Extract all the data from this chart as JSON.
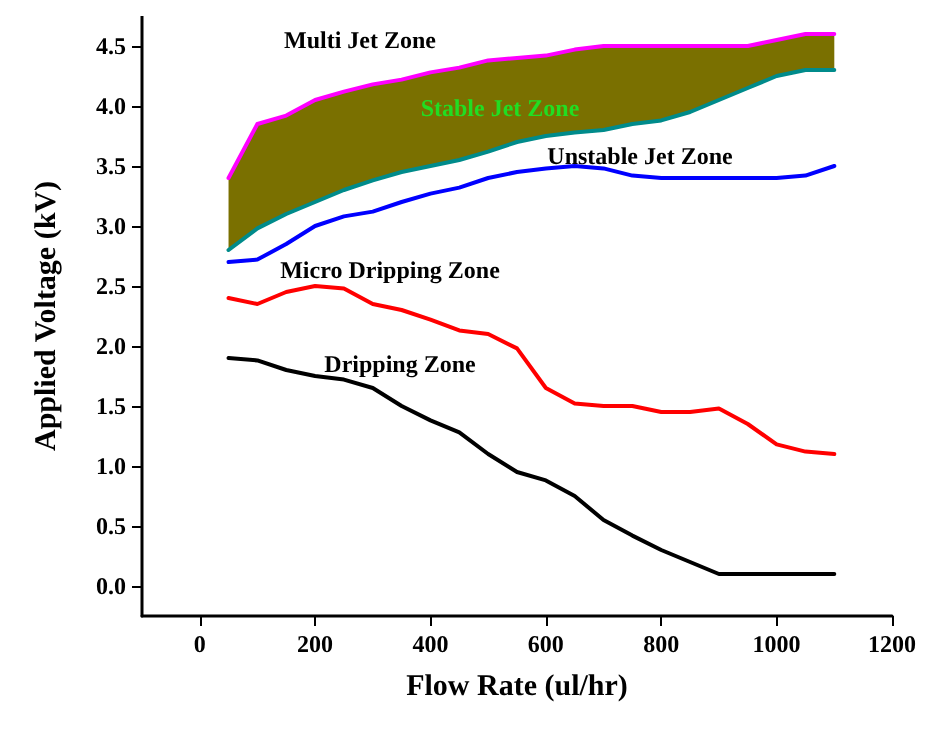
{
  "chart_data": {
    "type": "line",
    "xlabel": "Flow Rate (ul/hr)",
    "ylabel": "Applied Voltage (kV)",
    "xlim": [
      -100,
      1200
    ],
    "ylim": [
      -0.25,
      4.75
    ],
    "xticks": [
      0,
      200,
      400,
      600,
      800,
      1000,
      1200
    ],
    "yticks": [
      {
        "value": 0,
        "label": "0.0"
      },
      {
        "value": 0.5,
        "label": "0.5"
      },
      {
        "value": 1,
        "label": "1.0"
      },
      {
        "value": 1.5,
        "label": "1.5"
      },
      {
        "value": 2,
        "label": "2.0"
      },
      {
        "value": 2.5,
        "label": "2.5"
      },
      {
        "value": 3,
        "label": "3.0"
      },
      {
        "value": 3.5,
        "label": "3.5"
      },
      {
        "value": 4,
        "label": "4.0"
      },
      {
        "value": 4.5,
        "label": "4.5"
      }
    ],
    "grid": false,
    "marker": "none",
    "line_style": "solid",
    "x": [
      50,
      100,
      150,
      200,
      250,
      300,
      350,
      400,
      450,
      500,
      550,
      600,
      650,
      700,
      750,
      800,
      850,
      900,
      950,
      1000,
      1050,
      1100
    ],
    "series": [
      {
        "color": "#000000",
        "values": [
          1.9,
          1.88,
          1.8,
          1.75,
          1.72,
          1.65,
          1.5,
          1.38,
          1.28,
          1.1,
          0.95,
          0.88,
          0.75,
          0.55,
          0.42,
          0.3,
          0.2,
          0.1,
          0.1,
          0.1,
          0.1,
          0.1
        ]
      },
      {
        "color": "#ff0000",
        "values": [
          2.4,
          2.35,
          2.45,
          2.5,
          2.48,
          2.35,
          2.3,
          2.22,
          2.13,
          2.1,
          1.98,
          1.65,
          1.52,
          1.5,
          1.5,
          1.45,
          1.45,
          1.48,
          1.35,
          1.18,
          1.12,
          1.1
        ]
      },
      {
        "color": "#0000ff",
        "values": [
          2.7,
          2.72,
          2.85,
          3.0,
          3.08,
          3.12,
          3.2,
          3.27,
          3.32,
          3.4,
          3.45,
          3.48,
          3.5,
          3.48,
          3.42,
          3.4,
          3.4,
          3.4,
          3.4,
          3.4,
          3.42,
          3.5
        ]
      },
      {
        "color": "#ff00ff",
        "values": [
          3.4,
          3.85,
          3.92,
          4.05,
          4.12,
          4.18,
          4.22,
          4.28,
          4.32,
          4.38,
          4.4,
          4.42,
          4.47,
          4.5,
          4.5,
          4.5,
          4.5,
          4.5,
          4.5,
          4.55,
          4.6,
          4.6
        ],
        "lower": [
          2.8,
          2.98,
          3.1,
          3.2,
          3.3,
          3.38,
          3.45,
          3.5,
          3.55,
          3.62,
          3.7,
          3.75,
          3.78,
          3.8,
          3.85,
          3.88,
          3.95,
          4.05,
          4.15,
          4.25,
          4.3,
          4.3
        ],
        "upper": [
          3.4,
          3.85,
          3.92,
          4.05,
          4.12,
          4.18,
          4.22,
          4.28,
          4.32,
          4.38,
          4.4,
          4.42,
          4.47,
          4.5,
          4.5,
          4.5,
          4.5,
          4.5,
          4.5,
          4.55,
          4.6,
          4.6
        ]
      },
      {
        "color": "#008b8b",
        "values": [
          2.8,
          2.98,
          3.1,
          3.2,
          3.3,
          3.38,
          3.45,
          3.5,
          3.55,
          3.62,
          3.7,
          3.75,
          3.78,
          3.8,
          3.85,
          3.88,
          3.95,
          4.05,
          4.15,
          4.25,
          4.3,
          4.3
        ]
      }
    ],
    "annotations": [
      "Multi Jet Zone",
      "Stable Jet Zone",
      "Unstable Jet Zone",
      "Micro Dripping Zone",
      "Dripping Zone"
    ]
  }
}
